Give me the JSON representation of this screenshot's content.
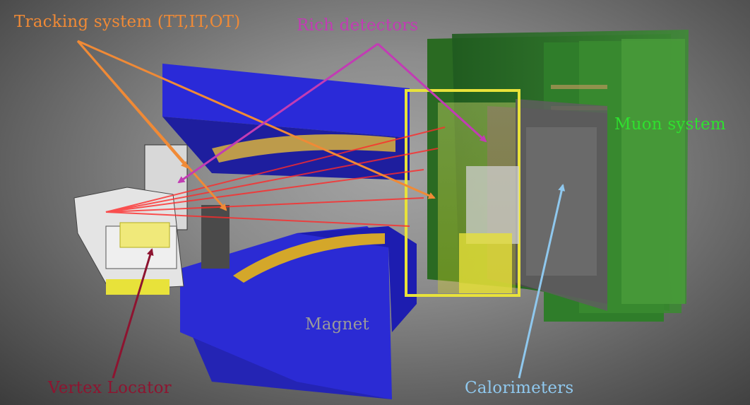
{
  "labels": {
    "tracking": {
      "text": "Tracking system (TT,IT,OT)",
      "color": "#f08a36"
    },
    "rich": {
      "text": "Rich detectors",
      "color": "#c23cb4"
    },
    "muon": {
      "text": "Muon system",
      "color": "#2fe02f"
    },
    "magnet": {
      "text": "Magnet",
      "color": "#9a9a9a"
    },
    "vertex": {
      "text": "Vertex Locator",
      "color": "#8e1430"
    },
    "calorimeters": {
      "text": "Calorimeters",
      "color": "#8fc8ee"
    }
  }
}
